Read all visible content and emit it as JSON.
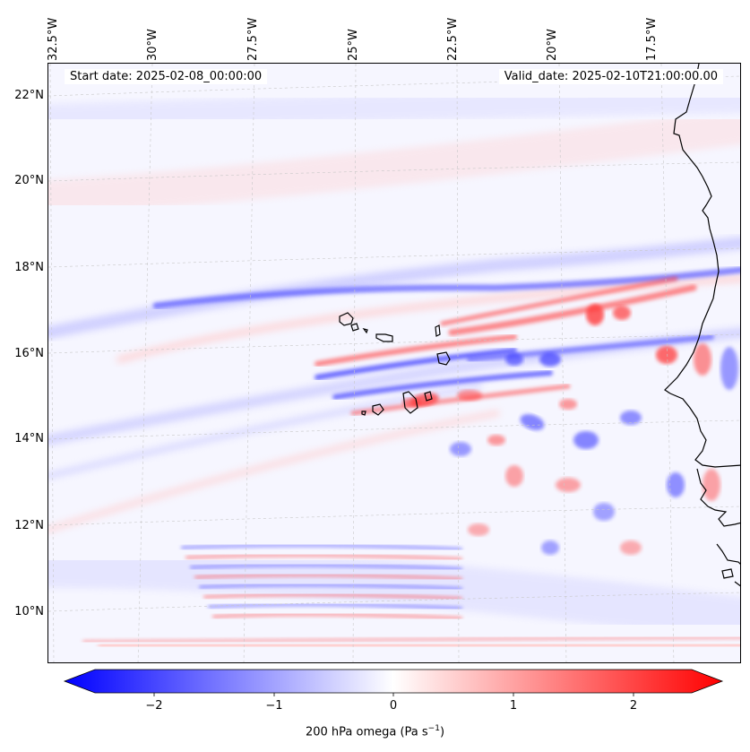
{
  "map": {
    "start_date": "Start date: 2025-02-08_00:00:00",
    "valid_date": "Valid_date: 2025-02-10T21:00:00.00",
    "lon_labels": [
      "32.5°W",
      "30°W",
      "27.5°W",
      "25°W",
      "22.5°W",
      "20°W",
      "17.5°W"
    ],
    "lat_labels": [
      "22°N",
      "20°N",
      "18°N",
      "16°N",
      "14°N",
      "12°N",
      "10°N"
    ],
    "field": "200 hPa omega",
    "colormap": [
      "#0000ff",
      "#ffffff",
      "#ff0000"
    ]
  },
  "colorbar": {
    "ticks": [
      "−2",
      "−1",
      "0",
      "1",
      "2"
    ],
    "label": "200 hPa omega (Pa s",
    "label_sup": "−1",
    "label_end": ")",
    "range": [
      -2.7,
      2.7
    ]
  }
}
